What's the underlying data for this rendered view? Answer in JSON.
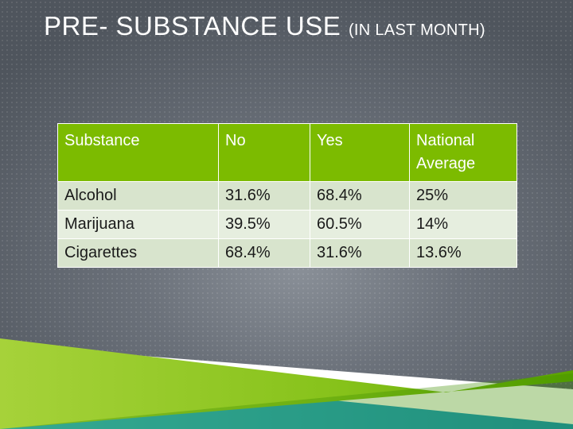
{
  "slide": {
    "title_main": "PRE- SUBSTANCE USE",
    "title_sub": "(IN LAST MONTH)"
  },
  "table": {
    "headers": [
      "Substance",
      "No",
      "Yes",
      "National Average"
    ],
    "rows": [
      [
        "Alcohol",
        "31.6%",
        "68.4%",
        "25%"
      ],
      [
        "Marijuana",
        "39.5%",
        "60.5%",
        "14%"
      ],
      [
        "Cigarettes",
        "68.4%",
        "31.6%",
        "13.6%"
      ]
    ]
  },
  "colors": {
    "accent_green": "#7cbb00",
    "accent_teal": "#00a0c6",
    "background": "#6b717a"
  }
}
